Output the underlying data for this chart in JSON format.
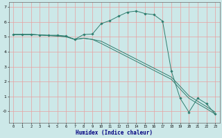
{
  "xlabel": "Humidex (Indice chaleur)",
  "bg_color": "#cce8e8",
  "grid_color": "#e8a0a0",
  "line_color": "#2e7d6e",
  "xlim": [
    -0.5,
    23.5
  ],
  "ylim": [
    -0.75,
    7.3
  ],
  "xticks": [
    0,
    1,
    2,
    3,
    4,
    5,
    6,
    7,
    8,
    9,
    10,
    11,
    12,
    13,
    14,
    15,
    16,
    17,
    18,
    19,
    20,
    21,
    22,
    23
  ],
  "yticks": [
    0,
    1,
    2,
    3,
    4,
    5,
    6,
    7
  ],
  "ytick_labels": [
    "-0",
    "1",
    "2",
    "3",
    "4",
    "5",
    "6",
    "7"
  ],
  "line1_x": [
    0,
    1,
    2,
    3,
    4,
    5,
    6,
    7,
    8,
    9,
    10,
    11,
    12,
    13,
    14,
    15,
    16,
    17,
    18,
    19,
    20,
    21,
    22,
    23
  ],
  "line1_y": [
    5.15,
    5.15,
    5.15,
    5.12,
    5.1,
    5.1,
    5.05,
    4.82,
    5.15,
    5.18,
    5.88,
    6.08,
    6.38,
    6.65,
    6.72,
    6.55,
    6.48,
    6.05,
    2.7,
    0.88,
    -0.05,
    0.88,
    0.52,
    -0.18
  ],
  "line2_x": [
    0,
    1,
    2,
    3,
    4,
    5,
    6,
    7,
    8,
    9,
    10,
    11,
    12,
    13,
    14,
    15,
    16,
    17,
    18,
    19,
    20,
    21,
    22,
    23
  ],
  "line2_y": [
    5.15,
    5.15,
    5.15,
    5.12,
    5.08,
    5.05,
    5.0,
    4.82,
    4.9,
    4.82,
    4.55,
    4.25,
    3.95,
    3.65,
    3.35,
    3.05,
    2.75,
    2.45,
    2.15,
    1.5,
    0.88,
    0.52,
    0.18,
    -0.18
  ],
  "line3_x": [
    0,
    1,
    2,
    3,
    4,
    5,
    6,
    7,
    8,
    9,
    10,
    11,
    12,
    13,
    14,
    15,
    16,
    17,
    18,
    19,
    20,
    21,
    22,
    23
  ],
  "line3_y": [
    5.15,
    5.15,
    5.15,
    5.12,
    5.08,
    5.05,
    5.0,
    4.82,
    4.9,
    4.82,
    4.7,
    4.4,
    4.1,
    3.8,
    3.5,
    3.2,
    2.9,
    2.6,
    2.3,
    1.68,
    1.05,
    0.68,
    0.32,
    -0.05
  ],
  "line1_markers": [
    0,
    1,
    2,
    3,
    4,
    5,
    6,
    7,
    8,
    9,
    10,
    11,
    12,
    13,
    14,
    15,
    16,
    17,
    20,
    21,
    22,
    23
  ],
  "marker": "D",
  "marker_size": 1.8,
  "linewidth": 0.7
}
